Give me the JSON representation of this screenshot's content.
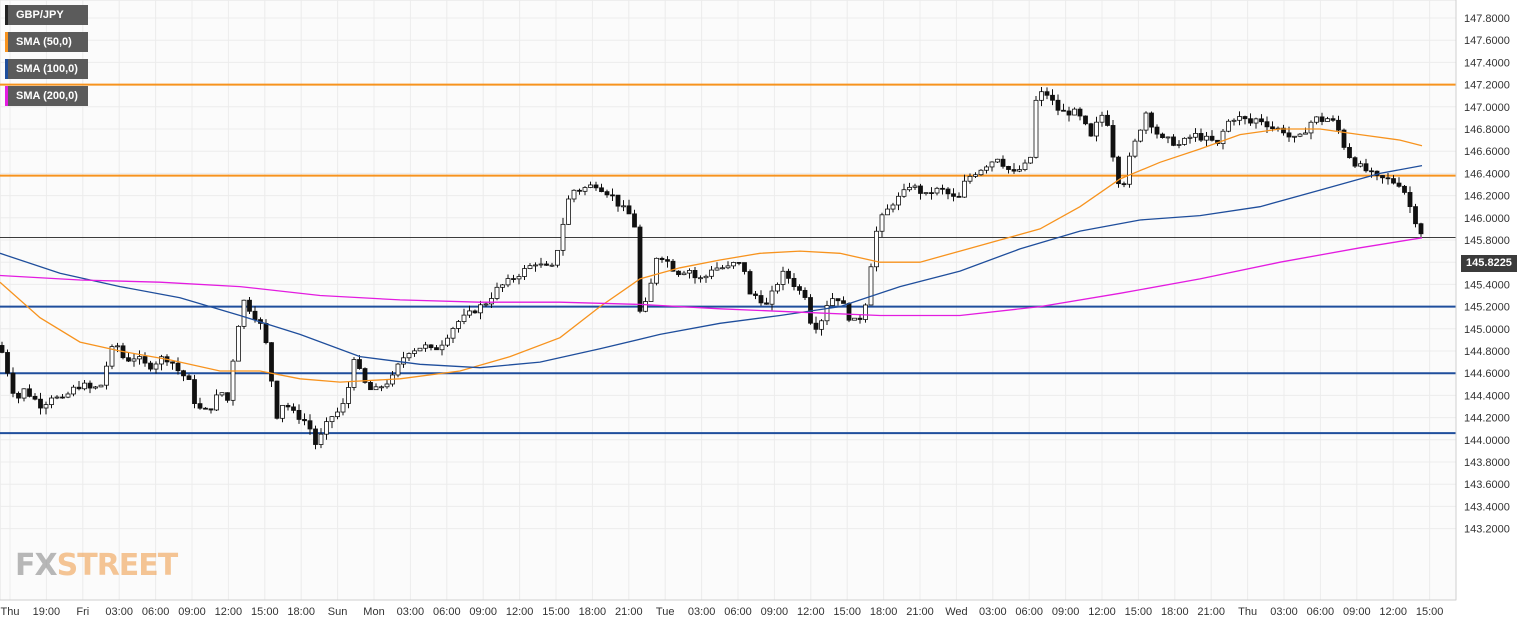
{
  "legend": [
    {
      "label": "GBP/JPY",
      "color": "#222222"
    },
    {
      "label": "SMA (50,0)",
      "color": "#f7931e"
    },
    {
      "label": "SMA (100,0)",
      "color": "#1f4e9c"
    },
    {
      "label": "SMA (200,0)",
      "color": "#e31ce0"
    }
  ],
  "logo": {
    "part1": "FX",
    "part2": "STREET"
  },
  "current_price": "145.8225",
  "chart_data": {
    "type": "candlestick",
    "symbol": "GBP/JPY",
    "ylim": [
      143.1,
      147.9
    ],
    "y_ticks": [
      "147.8000",
      "147.6000",
      "147.4000",
      "147.2000",
      "147.0000",
      "146.8000",
      "146.6000",
      "146.4000",
      "146.2000",
      "146.0000",
      "145.8000",
      "145.6000",
      "145.4000",
      "145.2000",
      "145.0000",
      "144.8000",
      "144.6000",
      "144.4000",
      "144.2000",
      "144.0000",
      "143.8000",
      "143.6000",
      "143.4000",
      "143.2000"
    ],
    "x_ticks": [
      "Thu",
      "19:00",
      "Fri",
      "03:00",
      "06:00",
      "09:00",
      "12:00",
      "15:00",
      "18:00",
      "Sun",
      "Mon",
      "03:00",
      "06:00",
      "09:00",
      "12:00",
      "15:00",
      "18:00",
      "21:00",
      "Tue",
      "03:00",
      "06:00",
      "09:00",
      "12:00",
      "15:00",
      "18:00",
      "21:00",
      "Wed",
      "03:00",
      "06:00",
      "09:00",
      "12:00",
      "15:00",
      "18:00",
      "21:00",
      "Thu",
      "03:00",
      "06:00",
      "09:00",
      "12:00",
      "15:00"
    ],
    "horizontal_levels": [
      {
        "value": 147.2,
        "color": "#f7931e"
      },
      {
        "value": 146.38,
        "color": "#f7931e"
      },
      {
        "value": 145.2,
        "color": "#1f4e9c"
      },
      {
        "value": 144.6,
        "color": "#1f4e9c"
      },
      {
        "value": 144.06,
        "color": "#1f4e9c"
      }
    ],
    "current_price_level": 145.8225,
    "close_path": [
      [
        0,
        144.85
      ],
      [
        8,
        144.6
      ],
      [
        16,
        144.35
      ],
      [
        24,
        144.45
      ],
      [
        33,
        144.38
      ],
      [
        42,
        144.3
      ],
      [
        52,
        144.4
      ],
      [
        62,
        144.35
      ],
      [
        72,
        144.45
      ],
      [
        82,
        144.5
      ],
      [
        92,
        144.45
      ],
      [
        102,
        144.5
      ],
      [
        110,
        144.8
      ],
      [
        118,
        144.85
      ],
      [
        125,
        144.7
      ],
      [
        132,
        144.75
      ],
      [
        140,
        144.72
      ],
      [
        148,
        144.65
      ],
      [
        156,
        144.7
      ],
      [
        164,
        144.75
      ],
      [
        172,
        144.7
      ],
      [
        180,
        144.6
      ],
      [
        188,
        144.55
      ],
      [
        196,
        144.3
      ],
      [
        204,
        144.25
      ],
      [
        212,
        144.3
      ],
      [
        220,
        144.45
      ],
      [
        228,
        144.35
      ],
      [
        236,
        144.95
      ],
      [
        244,
        145.25
      ],
      [
        252,
        145.15
      ],
      [
        260,
        145.05
      ],
      [
        268,
        144.8
      ],
      [
        276,
        144.2
      ],
      [
        284,
        144.35
      ],
      [
        292,
        144.25
      ],
      [
        300,
        144.2
      ],
      [
        308,
        144.15
      ],
      [
        316,
        143.95
      ],
      [
        322,
        144.05
      ],
      [
        330,
        144.2
      ],
      [
        338,
        144.25
      ],
      [
        346,
        144.35
      ],
      [
        354,
        144.75
      ],
      [
        360,
        144.6
      ],
      [
        368,
        144.45
      ],
      [
        376,
        144.45
      ],
      [
        384,
        144.5
      ],
      [
        392,
        144.55
      ],
      [
        400,
        144.7
      ],
      [
        408,
        144.8
      ],
      [
        416,
        144.82
      ],
      [
        424,
        144.85
      ],
      [
        432,
        144.8
      ],
      [
        440,
        144.85
      ],
      [
        448,
        144.95
      ],
      [
        456,
        145.05
      ],
      [
        464,
        145.1
      ],
      [
        472,
        145.15
      ],
      [
        480,
        145.2
      ],
      [
        488,
        145.25
      ],
      [
        496,
        145.35
      ],
      [
        504,
        145.4
      ],
      [
        512,
        145.45
      ],
      [
        520,
        145.5
      ],
      [
        528,
        145.55
      ],
      [
        536,
        145.6
      ],
      [
        544,
        145.55
      ],
      [
        552,
        145.55
      ],
      [
        560,
        145.8
      ],
      [
        566,
        146.1
      ],
      [
        572,
        146.25
      ],
      [
        580,
        146.25
      ],
      [
        588,
        146.28
      ],
      [
        596,
        146.3
      ],
      [
        604,
        146.25
      ],
      [
        612,
        146.2
      ],
      [
        620,
        146.1
      ],
      [
        628,
        146.05
      ],
      [
        636,
        145.9
      ],
      [
        640,
        145.15
      ],
      [
        648,
        145.25
      ],
      [
        656,
        145.65
      ],
      [
        664,
        145.65
      ],
      [
        672,
        145.55
      ],
      [
        680,
        145.5
      ],
      [
        688,
        145.55
      ],
      [
        696,
        145.45
      ],
      [
        704,
        145.45
      ],
      [
        712,
        145.55
      ],
      [
        720,
        145.55
      ],
      [
        728,
        145.55
      ],
      [
        736,
        145.6
      ],
      [
        744,
        145.55
      ],
      [
        750,
        145.3
      ],
      [
        758,
        145.3
      ],
      [
        766,
        145.2
      ],
      [
        774,
        145.35
      ],
      [
        782,
        145.5
      ],
      [
        790,
        145.45
      ],
      [
        798,
        145.35
      ],
      [
        806,
        145.3
      ],
      [
        812,
        145.0
      ],
      [
        820,
        145.05
      ],
      [
        828,
        145.25
      ],
      [
        836,
        145.3
      ],
      [
        844,
        145.2
      ],
      [
        852,
        145.05
      ],
      [
        860,
        145.1
      ],
      [
        866,
        145.25
      ],
      [
        872,
        145.65
      ],
      [
        878,
        145.95
      ],
      [
        886,
        146.05
      ],
      [
        894,
        146.15
      ],
      [
        902,
        146.2
      ],
      [
        910,
        146.3
      ],
      [
        918,
        146.25
      ],
      [
        926,
        146.2
      ],
      [
        934,
        146.25
      ],
      [
        942,
        146.25
      ],
      [
        950,
        146.2
      ],
      [
        958,
        146.15
      ],
      [
        966,
        146.35
      ],
      [
        974,
        146.4
      ],
      [
        982,
        146.45
      ],
      [
        990,
        146.5
      ],
      [
        998,
        146.55
      ],
      [
        1006,
        146.45
      ],
      [
        1014,
        146.4
      ],
      [
        1022,
        146.45
      ],
      [
        1030,
        146.5
      ],
      [
        1036,
        147.05
      ],
      [
        1044,
        147.15
      ],
      [
        1052,
        147.05
      ],
      [
        1060,
        146.95
      ],
      [
        1068,
        146.95
      ],
      [
        1076,
        146.95
      ],
      [
        1084,
        146.85
      ],
      [
        1092,
        146.7
      ],
      [
        1100,
        146.95
      ],
      [
        1108,
        146.85
      ],
      [
        1116,
        146.4
      ],
      [
        1122,
        146.25
      ],
      [
        1130,
        146.55
      ],
      [
        1138,
        146.75
      ],
      [
        1146,
        146.95
      ],
      [
        1154,
        146.8
      ],
      [
        1162,
        146.7
      ],
      [
        1170,
        146.7
      ],
      [
        1178,
        146.65
      ],
      [
        1186,
        146.7
      ],
      [
        1194,
        146.75
      ],
      [
        1202,
        146.72
      ],
      [
        1210,
        146.7
      ],
      [
        1218,
        146.65
      ],
      [
        1226,
        146.85
      ],
      [
        1234,
        146.9
      ],
      [
        1242,
        146.9
      ],
      [
        1250,
        146.85
      ],
      [
        1258,
        146.9
      ],
      [
        1266,
        146.85
      ],
      [
        1274,
        146.8
      ],
      [
        1282,
        146.8
      ],
      [
        1290,
        146.72
      ],
      [
        1298,
        146.7
      ],
      [
        1306,
        146.8
      ],
      [
        1314,
        146.9
      ],
      [
        1322,
        146.88
      ],
      [
        1330,
        146.9
      ],
      [
        1338,
        146.8
      ],
      [
        1346,
        146.6
      ],
      [
        1354,
        146.5
      ],
      [
        1362,
        146.45
      ],
      [
        1370,
        146.4
      ],
      [
        1378,
        146.35
      ],
      [
        1386,
        146.35
      ],
      [
        1394,
        146.32
      ],
      [
        1402,
        146.3
      ],
      [
        1410,
        146.1
      ],
      [
        1418,
        145.92
      ],
      [
        1424,
        145.8225
      ]
    ],
    "sma_50": [
      [
        0,
        145.42
      ],
      [
        40,
        145.1
      ],
      [
        80,
        144.88
      ],
      [
        120,
        144.8
      ],
      [
        170,
        144.72
      ],
      [
        220,
        144.62
      ],
      [
        260,
        144.62
      ],
      [
        300,
        144.55
      ],
      [
        340,
        144.52
      ],
      [
        400,
        144.55
      ],
      [
        460,
        144.62
      ],
      [
        510,
        144.75
      ],
      [
        560,
        144.92
      ],
      [
        600,
        145.2
      ],
      [
        640,
        145.45
      ],
      [
        680,
        145.55
      ],
      [
        720,
        145.62
      ],
      [
        760,
        145.68
      ],
      [
        800,
        145.7
      ],
      [
        840,
        145.68
      ],
      [
        880,
        145.6
      ],
      [
        920,
        145.6
      ],
      [
        960,
        145.7
      ],
      [
        1000,
        145.8
      ],
      [
        1040,
        145.9
      ],
      [
        1080,
        146.1
      ],
      [
        1120,
        146.35
      ],
      [
        1160,
        146.5
      ],
      [
        1200,
        146.62
      ],
      [
        1240,
        146.75
      ],
      [
        1280,
        146.8
      ],
      [
        1320,
        146.8
      ],
      [
        1360,
        146.75
      ],
      [
        1400,
        146.7
      ],
      [
        1422,
        146.65
      ]
    ],
    "sma_100": [
      [
        0,
        145.68
      ],
      [
        60,
        145.5
      ],
      [
        120,
        145.38
      ],
      [
        180,
        145.28
      ],
      [
        240,
        145.12
      ],
      [
        300,
        144.95
      ],
      [
        360,
        144.75
      ],
      [
        420,
        144.68
      ],
      [
        480,
        144.65
      ],
      [
        540,
        144.7
      ],
      [
        600,
        144.82
      ],
      [
        660,
        144.95
      ],
      [
        720,
        145.05
      ],
      [
        780,
        145.12
      ],
      [
        840,
        145.2
      ],
      [
        900,
        145.38
      ],
      [
        960,
        145.52
      ],
      [
        1020,
        145.72
      ],
      [
        1080,
        145.88
      ],
      [
        1140,
        145.98
      ],
      [
        1200,
        146.02
      ],
      [
        1260,
        146.1
      ],
      [
        1320,
        146.25
      ],
      [
        1380,
        146.4
      ],
      [
        1422,
        146.47
      ]
    ],
    "sma_200": [
      [
        0,
        145.48
      ],
      [
        80,
        145.44
      ],
      [
        160,
        145.42
      ],
      [
        240,
        145.38
      ],
      [
        320,
        145.3
      ],
      [
        400,
        145.26
      ],
      [
        480,
        145.24
      ],
      [
        560,
        145.24
      ],
      [
        640,
        145.22
      ],
      [
        720,
        145.18
      ],
      [
        800,
        145.15
      ],
      [
        880,
        145.12
      ],
      [
        960,
        145.12
      ],
      [
        1040,
        145.2
      ],
      [
        1120,
        145.32
      ],
      [
        1200,
        145.45
      ],
      [
        1280,
        145.6
      ],
      [
        1360,
        145.73
      ],
      [
        1422,
        145.82
      ]
    ]
  }
}
